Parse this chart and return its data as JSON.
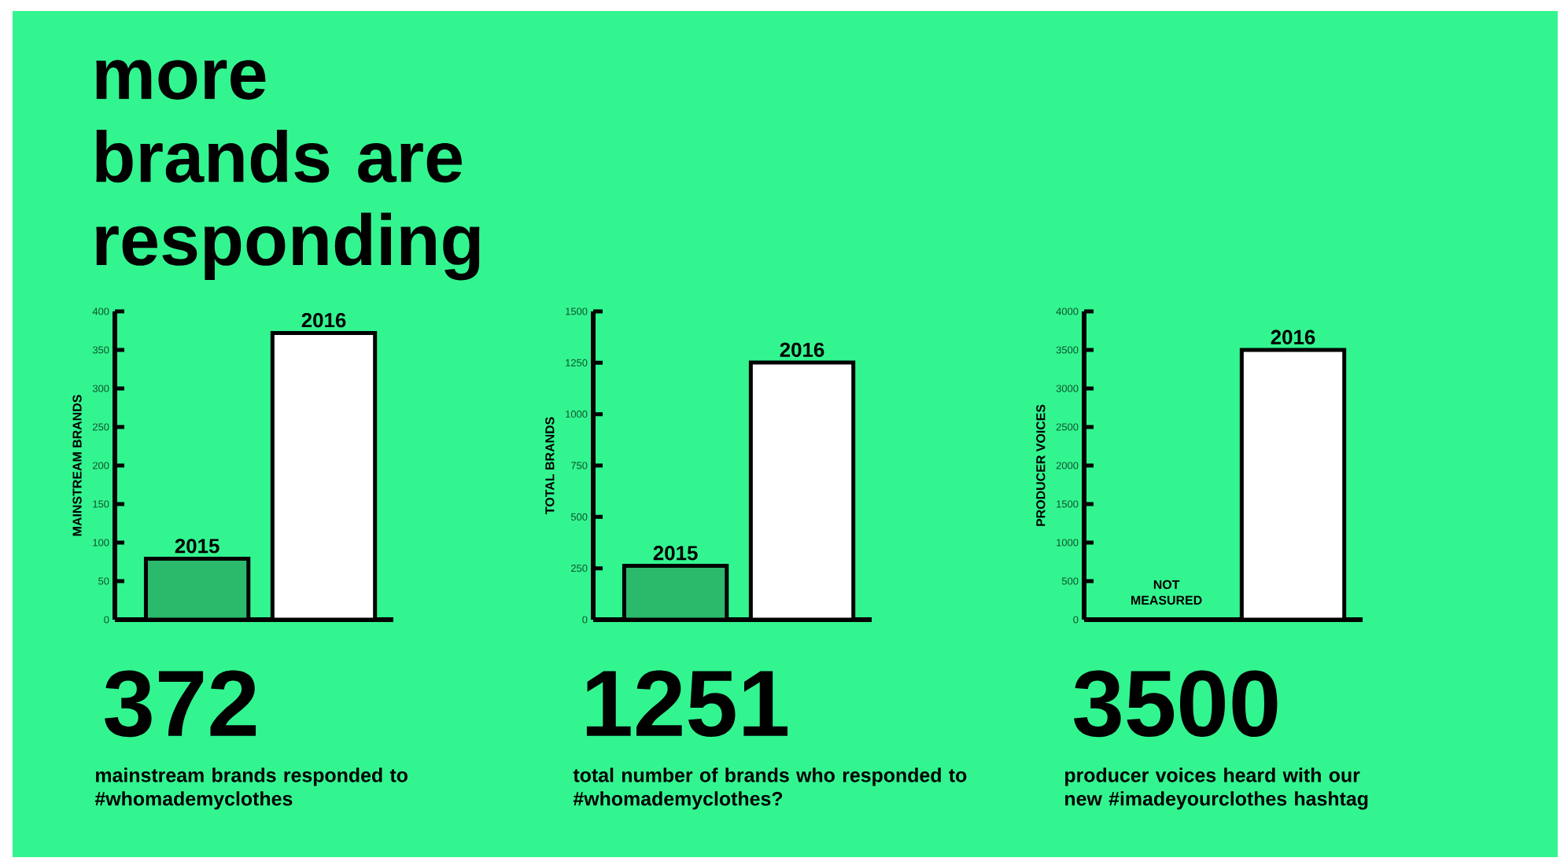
{
  "chart_data": [
    {
      "type": "bar",
      "title": "more brands are responding",
      "ylabel": "MAINSTREAM BRANDS",
      "categories": [
        "2015",
        "2016"
      ],
      "values": [
        79,
        372
      ],
      "colors": [
        "#2bb96c",
        "#ffffff"
      ],
      "ylim": [
        0,
        400
      ],
      "yticks": [
        0,
        50,
        100,
        150,
        200,
        250,
        300,
        350,
        400
      ],
      "annotations": [
        "372",
        "mainstream brands responded to #whomademyclothes"
      ]
    },
    {
      "type": "bar",
      "ylabel": "TOTAL BRANDS",
      "categories": [
        "2015",
        "2016"
      ],
      "values": [
        262,
        1251
      ],
      "colors": [
        "#2bb96c",
        "#ffffff"
      ],
      "ylim": [
        0,
        1500
      ],
      "yticks": [
        0,
        250,
        500,
        750,
        1000,
        1250,
        1500
      ],
      "annotations": [
        "1251",
        "total number of brands who responded to #whomademyclothes?"
      ]
    },
    {
      "type": "bar",
      "ylabel": "PRODUCER VOICES",
      "categories": [
        null,
        "2016"
      ],
      "values": [
        null,
        3500
      ],
      "value_labels": [
        "NOT MEASURED",
        null
      ],
      "colors": [
        "#2bb96c",
        "#ffffff"
      ],
      "ylim": [
        0,
        4000
      ],
      "yticks": [
        0,
        500,
        1000,
        1500,
        2000,
        2500,
        3000,
        3500,
        4000
      ],
      "annotations": [
        "3500",
        "producer voices heard with our new #imadeyourclothes hashtag"
      ]
    }
  ]
}
